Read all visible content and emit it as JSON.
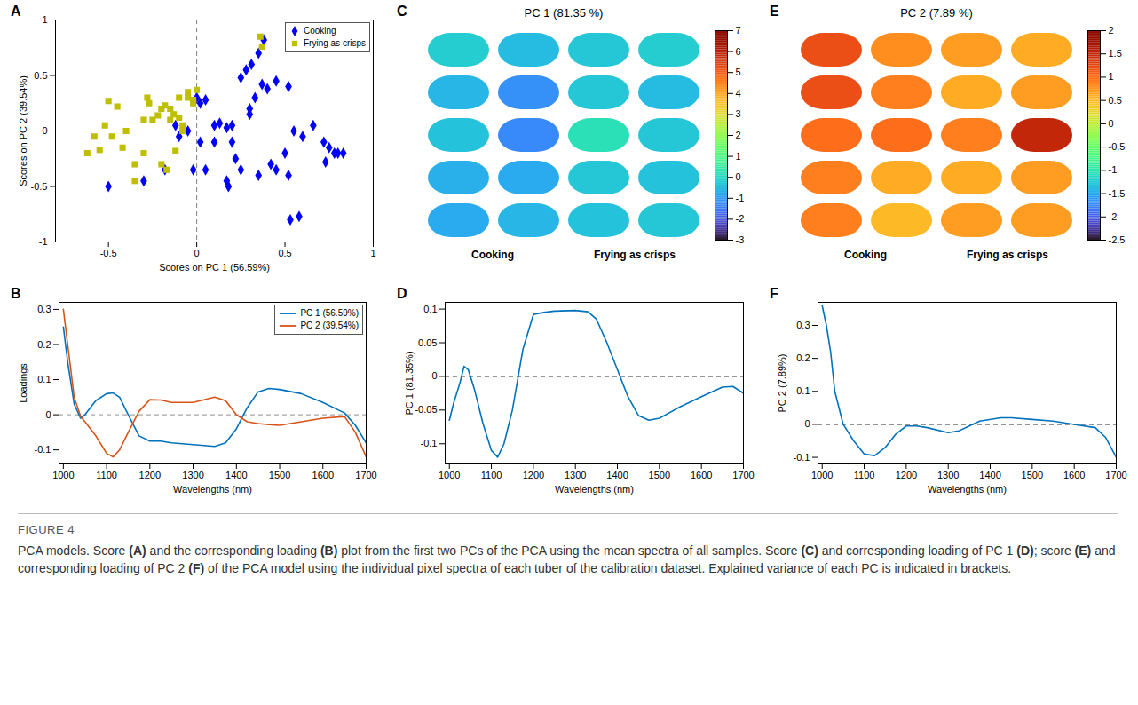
{
  "chart_data": [
    {
      "panel": "A",
      "type": "scatter",
      "xlabel": "Scores on PC 1 (56.59%)",
      "ylabel": "Scores on PC 2 (39.54%)",
      "xlim": [
        -0.8,
        1
      ],
      "xticks": [
        -0.5,
        0,
        0.5,
        1
      ],
      "ylim": [
        -1,
        1
      ],
      "yticks": [
        -1,
        -0.5,
        0,
        0.5,
        1
      ],
      "legend": "top-right",
      "series": [
        {
          "name": "Cooking",
          "color": "#0000ff",
          "marker": "diamond",
          "x": [
            0.38,
            0.35,
            0.31,
            0.28,
            0.25,
            0.4,
            0.45,
            0.37,
            0.33,
            0.52,
            0.3,
            0.13,
            0.17,
            0.1,
            0.05,
            0.02,
            0.2,
            0.0,
            -0.05,
            -0.02,
            0.05,
            0.1,
            0.2,
            0.02,
            0.25,
            0.22,
            0.17,
            0.18,
            0.35,
            0.42,
            0.45,
            0.5,
            0.55,
            0.6,
            0.52,
            0.53,
            0.58,
            0.72,
            0.75,
            0.78,
            0.8,
            0.83,
            0.73,
            -0.5,
            -0.3,
            -0.18,
            -0.12,
            -0.1,
            0.3,
            0.66
          ],
          "y": [
            0.82,
            0.7,
            0.6,
            0.55,
            0.48,
            0.38,
            0.45,
            0.42,
            0.3,
            0.4,
            0.2,
            0.07,
            0.03,
            0.05,
            0.28,
            0.25,
            0.05,
            0.3,
            0.0,
            -0.35,
            -0.35,
            -0.1,
            -0.1,
            -0.1,
            -0.35,
            -0.25,
            -0.45,
            -0.5,
            -0.4,
            -0.3,
            -0.35,
            -0.2,
            0.0,
            -0.05,
            -0.4,
            -0.8,
            -0.77,
            -0.1,
            -0.15,
            -0.2,
            -0.2,
            -0.2,
            -0.28,
            -0.5,
            -0.45,
            -0.35,
            0.05,
            -0.05,
            0.15,
            0.05
          ]
        },
        {
          "name": "Frying as crisps",
          "color": "#bfbf00",
          "marker": "square",
          "x": [
            0.36,
            0.37,
            0.0,
            -0.02,
            -0.1,
            -0.05,
            -0.2,
            -0.18,
            -0.15,
            -0.13,
            -0.22,
            -0.25,
            -0.3,
            -0.15,
            -0.1,
            -0.08,
            -0.05,
            -0.5,
            -0.45,
            -0.52,
            -0.4,
            -0.58,
            -0.42,
            -0.35,
            -0.3,
            -0.2,
            -0.17,
            -0.35,
            -0.62,
            -0.55,
            -0.48,
            -0.28,
            -0.27,
            -0.08,
            -0.12,
            -0.02
          ],
          "y": [
            0.85,
            0.76,
            0.37,
            0.28,
            0.3,
            0.3,
            0.2,
            0.23,
            0.2,
            0.15,
            0.14,
            0.1,
            0.1,
            0.1,
            0.12,
            0.05,
            0.35,
            0.27,
            0.22,
            0.05,
            0.0,
            -0.05,
            -0.15,
            -0.3,
            -0.2,
            -0.3,
            -0.35,
            -0.45,
            -0.2,
            -0.17,
            -0.05,
            0.3,
            0.25,
            0.0,
            -0.18,
            0.25
          ]
        }
      ]
    },
    {
      "panel": "B",
      "type": "line",
      "xlabel": "Wavelengths (nm)",
      "ylabel": "Loadings",
      "xlim": [
        990,
        1700
      ],
      "xticks": [
        1000,
        1100,
        1200,
        1300,
        1400,
        1500,
        1600,
        1700
      ],
      "ylim": [
        -0.14,
        0.32
      ],
      "yticks": [
        -0.1,
        0,
        0.1,
        0.2,
        0.3
      ],
      "legend": "top-right",
      "x": [
        1000,
        1010,
        1025,
        1040,
        1050,
        1075,
        1100,
        1115,
        1130,
        1150,
        1175,
        1200,
        1225,
        1250,
        1300,
        1350,
        1375,
        1400,
        1425,
        1450,
        1475,
        1500,
        1550,
        1600,
        1650,
        1675,
        1700
      ],
      "series": [
        {
          "name": "PC 1 (56.59%)",
          "color": "#0072bd",
          "line_style": "solid",
          "values": [
            0.25,
            0.15,
            0.03,
            -0.01,
            0.0,
            0.04,
            0.06,
            0.062,
            0.05,
            0.0,
            -0.06,
            -0.075,
            -0.075,
            -0.08,
            -0.085,
            -0.09,
            -0.08,
            -0.04,
            0.02,
            0.065,
            0.075,
            0.072,
            0.06,
            0.035,
            0.005,
            -0.03,
            -0.08
          ]
        },
        {
          "name": "PC 2 (39.54%)",
          "color": "#d95319",
          "line_style": "solid",
          "values": [
            0.3,
            0.2,
            0.05,
            -0.005,
            -0.02,
            -0.06,
            -0.11,
            -0.12,
            -0.1,
            -0.05,
            0.01,
            0.043,
            0.042,
            0.035,
            0.035,
            0.05,
            0.04,
            0.0,
            -0.02,
            -0.025,
            -0.028,
            -0.03,
            -0.02,
            -0.01,
            -0.005,
            -0.05,
            -0.12
          ]
        }
      ]
    },
    {
      "panel": "C",
      "type": "heatmap",
      "title": "PC 1 (81.35 %)",
      "groups": [
        "Cooking",
        "Frying as crisps"
      ],
      "tick_labels": false,
      "cells": [
        [
          -0.2,
          -0.5,
          -0.3,
          -0.2
        ],
        [
          -0.6,
          -1.2,
          -0.3,
          -0.5
        ],
        [
          -0.4,
          -1.3,
          0.2,
          -0.3
        ],
        [
          -0.7,
          -0.8,
          -0.3,
          -0.4
        ],
        [
          -0.8,
          -0.6,
          -0.4,
          -0.3
        ]
      ],
      "colorbar": {
        "range": [
          -3,
          7
        ],
        "ticks": [
          -3,
          -2,
          -1,
          0,
          1,
          2,
          3,
          4,
          5,
          6,
          7
        ]
      }
    },
    {
      "panel": "D",
      "type": "line",
      "xlabel": "Wavelengths (nm)",
      "ylabel": "PC 1 (81.35%)",
      "xlim": [
        990,
        1700
      ],
      "xticks": [
        1000,
        1100,
        1200,
        1300,
        1400,
        1500,
        1600,
        1700
      ],
      "ylim": [
        -0.13,
        0.11
      ],
      "yticks": [
        -0.1,
        -0.05,
        0,
        0.05,
        0.1
      ],
      "color": "#0072bd",
      "x": [
        1000,
        1010,
        1025,
        1035,
        1045,
        1060,
        1080,
        1100,
        1115,
        1130,
        1150,
        1175,
        1200,
        1225,
        1250,
        1300,
        1330,
        1350,
        1375,
        1400,
        1425,
        1450,
        1475,
        1500,
        1550,
        1600,
        1650,
        1675,
        1700
      ],
      "values": [
        -0.065,
        -0.04,
        -0.01,
        0.015,
        0.01,
        -0.02,
        -0.07,
        -0.11,
        -0.12,
        -0.1,
        -0.05,
        0.04,
        0.092,
        0.095,
        0.097,
        0.098,
        0.096,
        0.085,
        0.05,
        0.01,
        -0.03,
        -0.058,
        -0.065,
        -0.062,
        -0.045,
        -0.03,
        -0.016,
        -0.015,
        -0.025
      ]
    },
    {
      "panel": "E",
      "type": "heatmap",
      "title": "PC 2 (7.89 %)",
      "groups": [
        "Cooking",
        "Frying as crisps"
      ],
      "tick_labels": false,
      "cells": [
        [
          1.2,
          0.8,
          0.7,
          0.6
        ],
        [
          1.2,
          0.9,
          0.6,
          0.7
        ],
        [
          1.0,
          1.0,
          0.9,
          1.5
        ],
        [
          0.9,
          0.6,
          0.6,
          0.7
        ],
        [
          0.9,
          0.5,
          0.7,
          0.7
        ]
      ],
      "colorbar": {
        "range": [
          -2.5,
          2
        ],
        "ticks": [
          -2.5,
          -2,
          -1.5,
          -1,
          -0.5,
          0,
          0.5,
          1,
          1.5,
          2
        ]
      }
    },
    {
      "panel": "F",
      "type": "line",
      "xlabel": "Wavelengths (nm)",
      "ylabel": "PC 2 (7.89%)",
      "xlim": [
        990,
        1700
      ],
      "xticks": [
        1000,
        1100,
        1200,
        1300,
        1400,
        1500,
        1600,
        1700
      ],
      "ylim": [
        -0.12,
        0.37
      ],
      "yticks": [
        -0.1,
        0,
        0.1,
        0.2,
        0.3
      ],
      "color": "#0072bd",
      "x": [
        1000,
        1010,
        1020,
        1030,
        1050,
        1075,
        1100,
        1125,
        1150,
        1175,
        1200,
        1225,
        1250,
        1300,
        1325,
        1350,
        1375,
        1425,
        1450,
        1500,
        1550,
        1600,
        1650,
        1675,
        1700
      ],
      "values": [
        0.36,
        0.3,
        0.22,
        0.1,
        0.0,
        -0.05,
        -0.09,
        -0.095,
        -0.07,
        -0.03,
        -0.005,
        -0.005,
        -0.01,
        -0.025,
        -0.02,
        -0.005,
        0.01,
        0.02,
        0.02,
        0.015,
        0.01,
        0.0,
        -0.01,
        -0.04,
        -0.1
      ]
    }
  ],
  "caption": {
    "label": "FIGURE 4",
    "text": "PCA models. Score (A) and the corresponding loading (B) plot from the first two PCs of the PCA using the mean spectra of all samples. Score (C) and corresponding loading of PC 1 (D); score (E) and corresponding loading of PC 2 (F) of the PCA model using the individual pixel spectra of each tuber of the calibration dataset. Explained variance of each PC is indicated in brackets."
  }
}
